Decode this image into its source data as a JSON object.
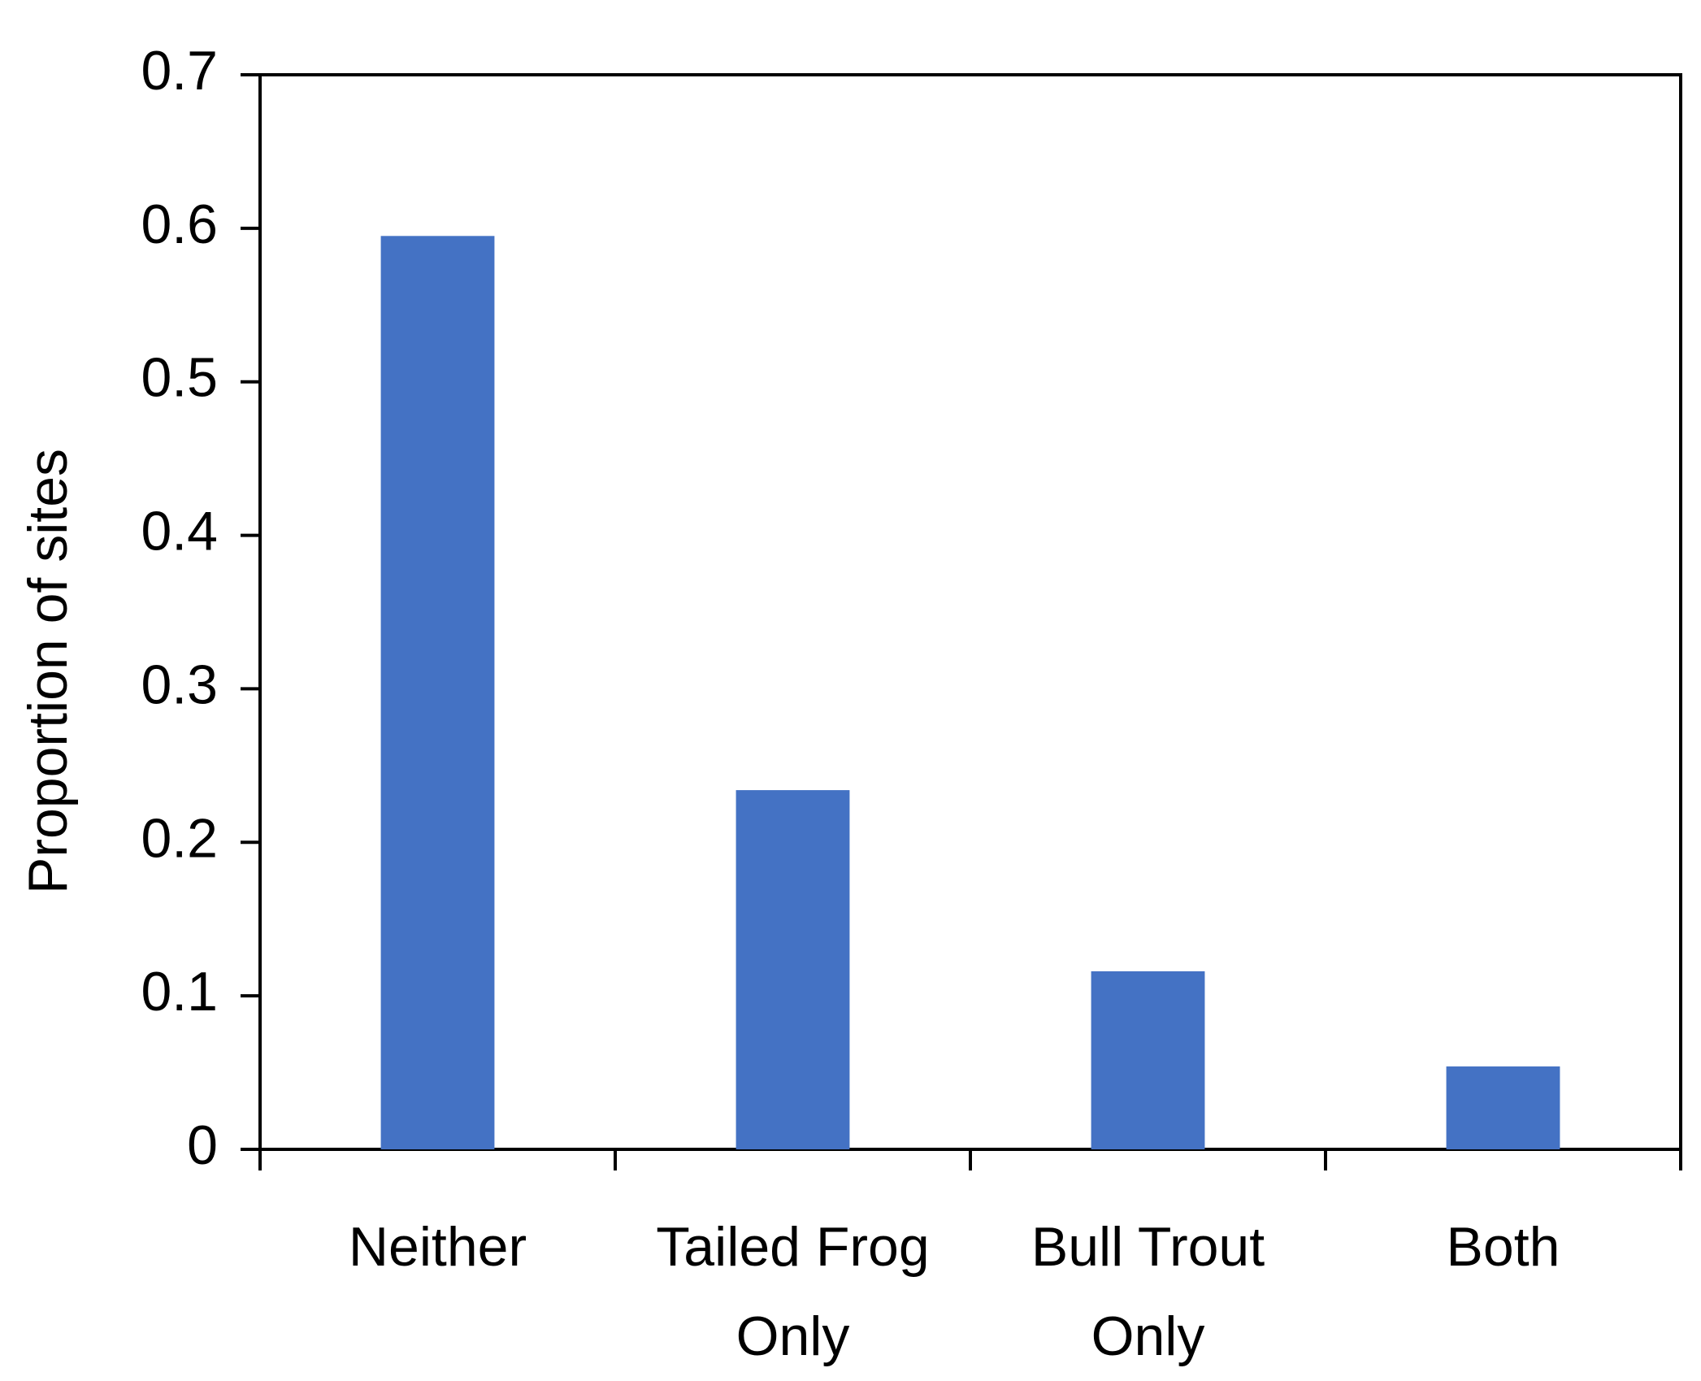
{
  "chart_data": {
    "type": "bar",
    "y_label": "Proportion of sites",
    "categories": [
      "Neither",
      "Tailed Frog Only",
      "Bull Trout Only",
      "Both"
    ],
    "values": [
      0.595,
      0.234,
      0.116,
      0.054
    ],
    "color": "#4472c4",
    "ylim": [
      0,
      0.7
    ],
    "yticks": [
      0,
      0.1,
      0.2,
      0.3,
      0.4,
      0.5,
      0.6,
      0.7
    ],
    "grid": false
  }
}
